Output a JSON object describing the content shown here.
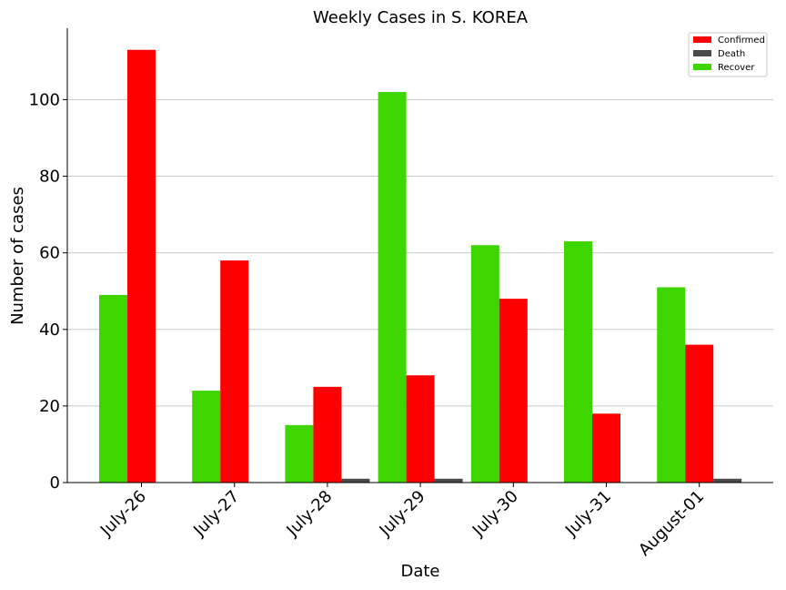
{
  "chart_data": {
    "type": "bar",
    "title": "Weekly Cases in S. KOREA",
    "xlabel": "Date",
    "ylabel": "Number of cases",
    "categories": [
      "July-26",
      "July-27",
      "July-28",
      "July-29",
      "July-30",
      "July-31",
      "August-01"
    ],
    "series": [
      {
        "name": "Recover",
        "color": "#3ed600",
        "values": [
          49,
          24,
          15,
          102,
          62,
          63,
          51
        ]
      },
      {
        "name": "Confirmed",
        "color": "#ff0000",
        "values": [
          113,
          58,
          25,
          28,
          48,
          18,
          36
        ]
      },
      {
        "name": "Death",
        "color": "#4a4a4a",
        "values": [
          0,
          0,
          1,
          1,
          0,
          0,
          1
        ]
      }
    ],
    "legend_order": [
      "Confirmed",
      "Death",
      "Recover"
    ],
    "ylim": [
      0,
      118.65
    ],
    "yticks": [
      0,
      20,
      40,
      60,
      80,
      100
    ],
    "grid": "y",
    "legend_position": "top-right"
  }
}
